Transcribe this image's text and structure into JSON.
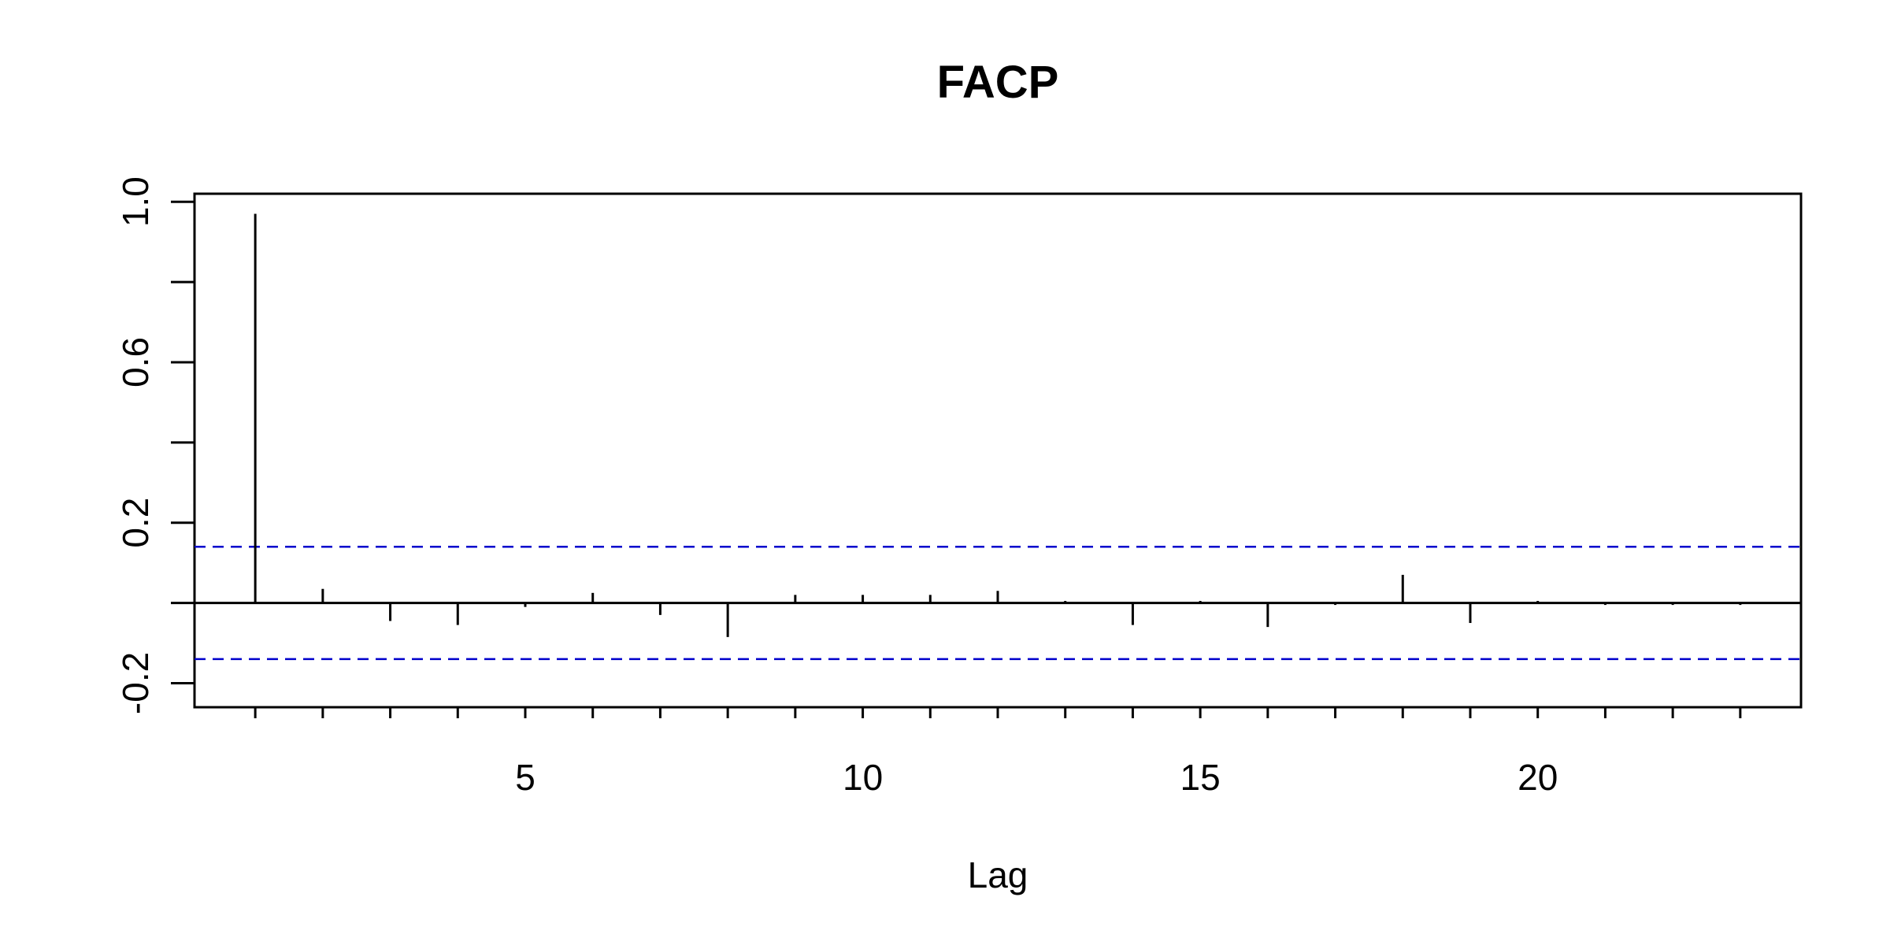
{
  "chart_data": {
    "type": "bar",
    "title": "FACP",
    "xlabel": "Lag",
    "ylabel": "",
    "xlim": [
      0.1,
      23.9
    ],
    "ylim": [
      -0.26,
      1.02
    ],
    "x_ticks": [
      5,
      10,
      15,
      20
    ],
    "x_minor_ticks": [
      1,
      2,
      3,
      4,
      5,
      6,
      7,
      8,
      9,
      10,
      11,
      12,
      13,
      14,
      15,
      16,
      17,
      18,
      19,
      20,
      21,
      22,
      23
    ],
    "y_ticks": [
      -0.2,
      0.2,
      0.6,
      1.0
    ],
    "y_tick_labels": [
      "-0.2",
      "0.2",
      "0.6",
      "1.0"
    ],
    "y_minor_ticks": [
      0.0,
      0.4,
      0.8
    ],
    "grid": false,
    "confidence_band": 0.14,
    "series": [
      {
        "x": [
          1,
          2,
          3,
          4,
          5,
          6,
          7,
          8,
          9,
          10,
          11,
          12,
          13,
          14,
          15,
          16,
          17,
          18,
          19,
          20,
          21,
          22,
          23
        ],
        "values": [
          0.97,
          0.035,
          -0.045,
          -0.055,
          -0.01,
          0.025,
          -0.03,
          -0.085,
          0.02,
          0.02,
          0.02,
          0.03,
          0.005,
          -0.055,
          0.005,
          -0.06,
          -0.005,
          0.07,
          -0.05,
          0.005,
          -0.005,
          -0.005,
          -0.005
        ]
      }
    ],
    "colors": {
      "bars": "#000000",
      "confidence_band": "#0000cc",
      "axes": "#000000"
    }
  }
}
